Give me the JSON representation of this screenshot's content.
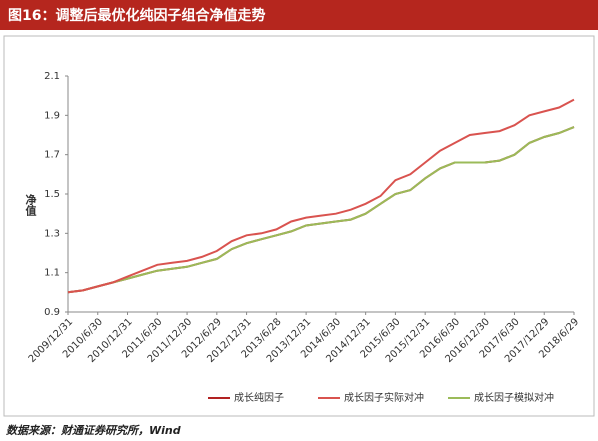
{
  "chart_data": {
    "type": "line",
    "title": "图16：调整后最优化纯因子组合净值走势",
    "y_label": "净值",
    "source": "数据来源：财通证券研究所，Wind",
    "categories": [
      "2009/12/31",
      null,
      "2010/6/30",
      null,
      "2010/12/31",
      null,
      "2011/6/30",
      null,
      "2011/12/30",
      null,
      "2012/6/29",
      null,
      "2012/12/31",
      null,
      "2013/6/28",
      null,
      "2013/12/31",
      null,
      "2014/6/30",
      null,
      "2014/12/31",
      null,
      "2015/6/30",
      null,
      "2015/12/31",
      null,
      "2016/6/30",
      null,
      "2016/12/30",
      null,
      "2017/6/30",
      null,
      "2017/12/29",
      null,
      "2018/6/29"
    ],
    "series": [
      {
        "name": "成长纯因子",
        "color": "#b22222",
        "values": [
          1.0,
          1.01,
          1.03,
          1.05,
          1.07,
          1.09,
          1.11,
          1.12,
          1.13,
          1.15,
          1.17,
          1.22,
          1.25,
          1.27,
          1.29,
          1.31,
          1.34,
          1.35,
          1.36,
          1.37,
          1.4,
          1.45,
          1.5,
          1.52,
          1.58,
          1.63,
          1.66,
          1.66,
          1.66,
          1.67,
          1.7,
          1.76,
          1.79,
          1.81,
          1.84
        ]
      },
      {
        "name": "成长因子实际对冲",
        "color": "#d9534f",
        "values": [
          1.0,
          1.01,
          1.03,
          1.05,
          1.08,
          1.11,
          1.14,
          1.15,
          1.16,
          1.18,
          1.21,
          1.26,
          1.29,
          1.3,
          1.32,
          1.36,
          1.38,
          1.39,
          1.4,
          1.42,
          1.45,
          1.49,
          1.57,
          1.6,
          1.66,
          1.72,
          1.76,
          1.8,
          1.81,
          1.82,
          1.85,
          1.9,
          1.92,
          1.94,
          1.98
        ]
      },
      {
        "name": "成长因子模拟对冲",
        "color": "#9bbb59",
        "values": [
          1.0,
          1.01,
          1.03,
          1.05,
          1.07,
          1.09,
          1.11,
          1.12,
          1.13,
          1.15,
          1.17,
          1.22,
          1.25,
          1.27,
          1.29,
          1.31,
          1.34,
          1.35,
          1.36,
          1.37,
          1.4,
          1.45,
          1.5,
          1.52,
          1.58,
          1.63,
          1.66,
          1.66,
          1.66,
          1.67,
          1.7,
          1.76,
          1.79,
          1.81,
          1.84
        ]
      }
    ],
    "ylim": [
      0.9,
      2.1
    ],
    "yticks": [
      0.9,
      1.1,
      1.3,
      1.5,
      1.7,
      1.9,
      2.1
    ],
    "grid": false
  }
}
